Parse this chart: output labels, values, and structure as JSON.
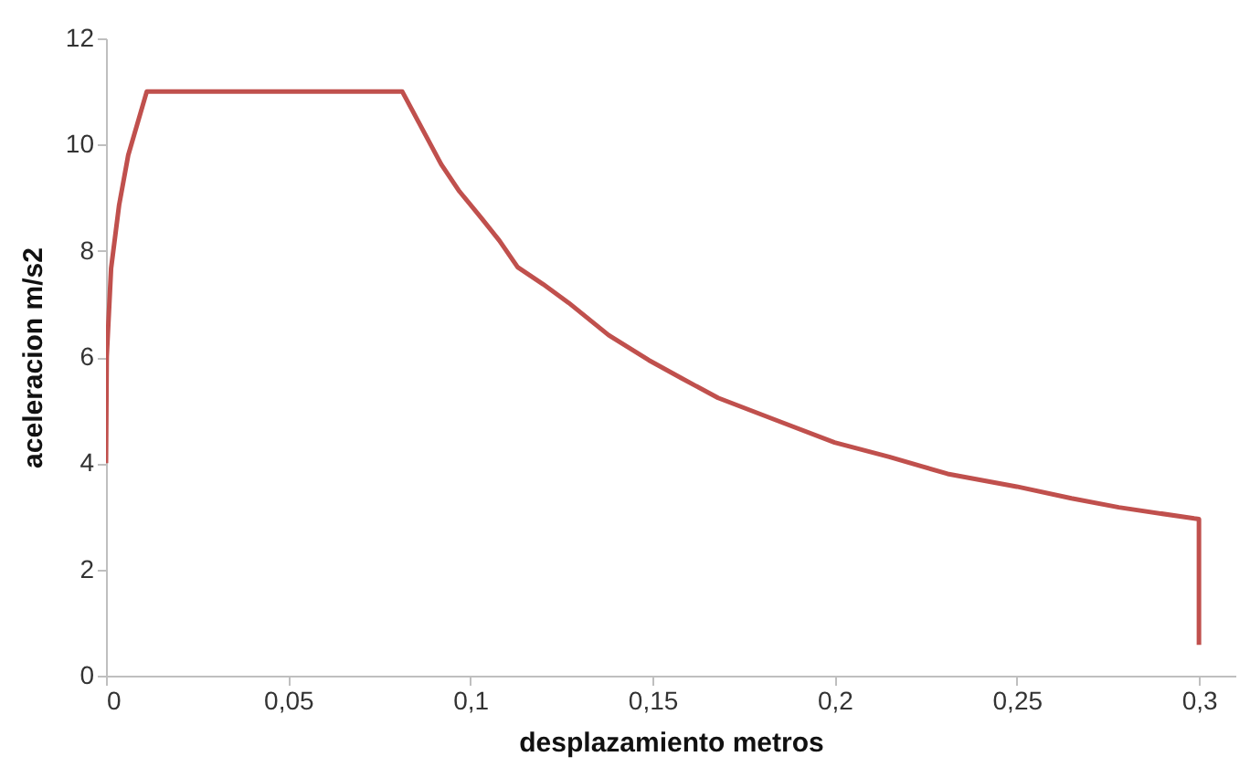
{
  "chart_data": {
    "type": "line",
    "xlabel": "desplazamiento metros",
    "ylabel": "aceleracion m/s2",
    "x": [
      0,
      0.0002,
      0.0014,
      0.0036,
      0.0061,
      0.0112,
      0.0813,
      0.092,
      0.097,
      0.103,
      0.108,
      0.113,
      0.12,
      0.127,
      0.138,
      0.149,
      0.158,
      0.168,
      0.184,
      0.2,
      0.215,
      0.231,
      0.25,
      0.265,
      0.278,
      0.2987,
      0.3,
      0.3
    ],
    "series": [
      {
        "color": "#c0504d",
        "values": [
          4,
          6.0,
          7.67,
          8.86,
          9.8,
          11,
          11,
          9.63,
          9.12,
          8.62,
          8.19,
          7.69,
          7.37,
          7.02,
          6.41,
          5.94,
          5.6,
          5.23,
          4.81,
          4.39,
          4.12,
          3.8,
          3.56,
          3.34,
          3.17,
          2.96,
          2.95,
          0.58
        ]
      }
    ],
    "xlim": [
      0,
      0.31
    ],
    "xticks": [
      0,
      {
        "value": 0.05,
        "label": "0,05"
      },
      {
        "value": 0.1,
        "label": "0,1"
      },
      {
        "value": 0.15,
        "label": "0,15"
      },
      {
        "value": 0.2,
        "label": "0,2"
      },
      {
        "value": 0.25,
        "label": "0,25"
      },
      {
        "value": 0.3,
        "label": "0,3"
      }
    ],
    "ylim": [
      0,
      12
    ],
    "yticks": [
      0,
      2,
      4,
      6,
      8,
      10,
      12
    ],
    "grid": false,
    "marker": "none",
    "line_style": "solid"
  }
}
